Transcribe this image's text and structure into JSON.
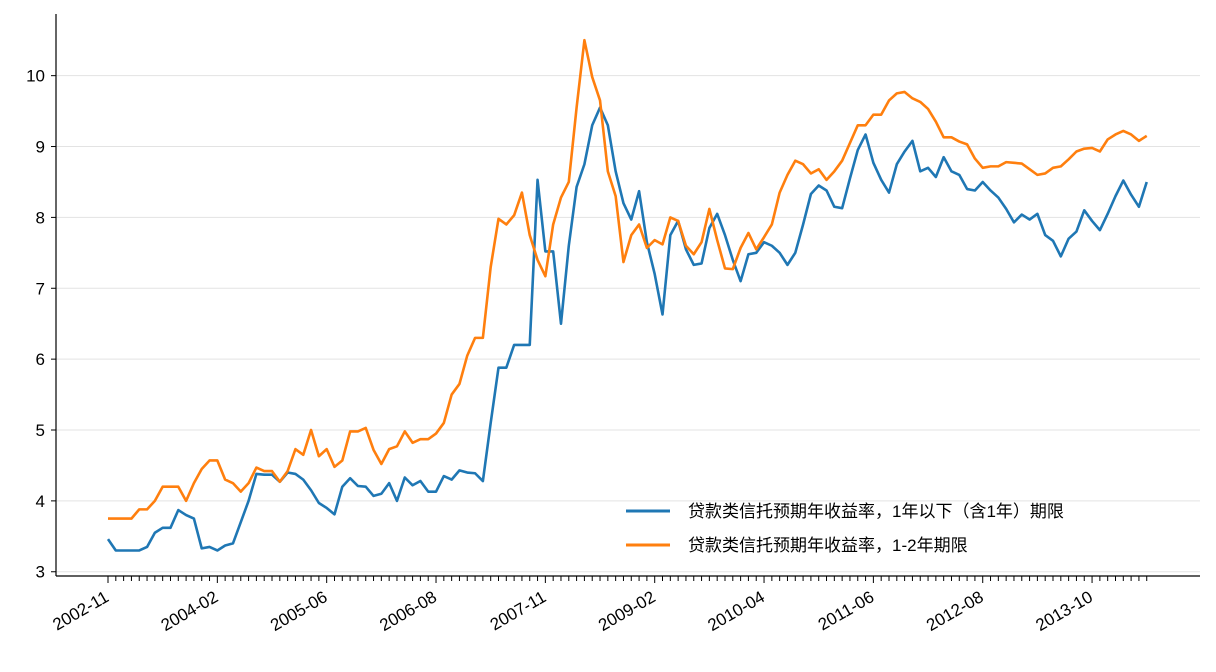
{
  "chart_data": {
    "type": "line",
    "categories": [
      "2002-11",
      null,
      null,
      null,
      null,
      null,
      null,
      null,
      null,
      null,
      null,
      null,
      null,
      null,
      "2004-02",
      null,
      null,
      null,
      null,
      null,
      null,
      null,
      null,
      null,
      null,
      null,
      null,
      null,
      "2005-06",
      null,
      null,
      null,
      null,
      null,
      null,
      null,
      null,
      null,
      null,
      null,
      null,
      null,
      "2006-08",
      null,
      null,
      null,
      null,
      null,
      null,
      null,
      null,
      null,
      null,
      null,
      null,
      null,
      "2007-11",
      null,
      null,
      null,
      null,
      null,
      null,
      null,
      null,
      null,
      null,
      null,
      null,
      null,
      "2009-02",
      null,
      null,
      null,
      null,
      null,
      null,
      null,
      null,
      null,
      null,
      null,
      null,
      null,
      "2010-04",
      null,
      null,
      null,
      null,
      null,
      null,
      null,
      null,
      null,
      null,
      null,
      null,
      null,
      "2011-06",
      null,
      null,
      null,
      null,
      null,
      null,
      null,
      null,
      null,
      null,
      null,
      null,
      null,
      "2012-08",
      null,
      null,
      null,
      null,
      null,
      null,
      null,
      null,
      null,
      null,
      null,
      null,
      null,
      "2013-10",
      null,
      null,
      null,
      null,
      null,
      null,
      null
    ],
    "series": [
      {
        "name": "贷款类信托预期年收益率，1年以下（含1年）期限",
        "color": "#1f77b4",
        "values": [
          3.46,
          3.3,
          3.3,
          3.3,
          3.3,
          3.35,
          3.55,
          3.62,
          3.62,
          3.87,
          3.8,
          3.75,
          3.33,
          3.35,
          3.3,
          3.37,
          3.4,
          3.7,
          4.0,
          4.38,
          4.37,
          4.37,
          4.27,
          4.4,
          4.38,
          4.3,
          4.15,
          3.97,
          3.9,
          3.81,
          4.2,
          4.32,
          4.21,
          4.2,
          4.07,
          4.1,
          4.25,
          4.0,
          4.33,
          4.22,
          4.28,
          4.13,
          4.13,
          4.35,
          4.3,
          4.43,
          4.4,
          4.39,
          4.28,
          5.1,
          5.88,
          5.88,
          6.2,
          6.2,
          6.2,
          8.53,
          7.52,
          7.52,
          6.5,
          7.6,
          8.43,
          8.75,
          9.3,
          9.55,
          9.3,
          8.65,
          8.2,
          7.97,
          8.37,
          7.65,
          7.2,
          6.63,
          7.75,
          7.95,
          7.55,
          7.33,
          7.35,
          7.85,
          8.05,
          7.75,
          7.4,
          7.1,
          7.48,
          7.5,
          7.65,
          7.6,
          7.5,
          7.33,
          7.5,
          7.9,
          8.33,
          8.45,
          8.38,
          8.15,
          8.13,
          8.55,
          8.95,
          9.17,
          8.77,
          8.53,
          8.35,
          8.75,
          8.93,
          9.08,
          8.65,
          8.7,
          8.57,
          8.85,
          8.65,
          8.6,
          8.4,
          8.38,
          8.5,
          8.38,
          8.28,
          8.12,
          7.93,
          8.04,
          7.97,
          8.05,
          7.75,
          7.67,
          7.45,
          7.7,
          7.8,
          8.1,
          7.95,
          7.82,
          8.05,
          8.3,
          8.52,
          8.32,
          8.15,
          8.5
        ]
      },
      {
        "name": "贷款类信托预期年收益率，1-2年期限",
        "color": "#ff7f0e",
        "values": [
          3.75,
          3.75,
          3.75,
          3.75,
          3.88,
          3.88,
          4.0,
          4.2,
          4.2,
          4.2,
          4.0,
          4.25,
          4.45,
          4.57,
          4.57,
          4.3,
          4.25,
          4.13,
          4.25,
          4.47,
          4.42,
          4.42,
          4.27,
          4.42,
          4.73,
          4.65,
          5.0,
          4.63,
          4.73,
          4.48,
          4.57,
          4.98,
          4.98,
          5.03,
          4.72,
          4.52,
          4.73,
          4.77,
          4.98,
          4.82,
          4.87,
          4.87,
          4.95,
          5.1,
          5.5,
          5.65,
          6.05,
          6.3,
          6.3,
          7.3,
          7.98,
          7.9,
          8.03,
          8.35,
          7.75,
          7.4,
          7.17,
          7.9,
          8.28,
          8.5,
          9.55,
          10.5,
          9.98,
          9.65,
          8.65,
          8.3,
          7.37,
          7.75,
          7.9,
          7.57,
          7.68,
          7.62,
          8.0,
          7.95,
          7.6,
          7.48,
          7.65,
          8.12,
          7.68,
          7.28,
          7.27,
          7.57,
          7.78,
          7.55,
          7.72,
          7.9,
          8.35,
          8.6,
          8.8,
          8.75,
          8.62,
          8.68,
          8.53,
          8.65,
          8.8,
          9.05,
          9.3,
          9.3,
          9.45,
          9.45,
          9.65,
          9.75,
          9.77,
          9.68,
          9.63,
          9.53,
          9.35,
          9.13,
          9.13,
          9.07,
          9.03,
          8.83,
          8.7,
          8.72,
          8.72,
          8.78,
          8.77,
          8.76,
          8.68,
          8.6,
          8.62,
          8.7,
          8.72,
          8.82,
          8.93,
          8.97,
          8.98,
          8.93,
          9.1,
          9.17,
          9.22,
          9.17,
          9.08,
          9.15
        ]
      }
    ],
    "ylim": [
      2.94,
      10.87
    ],
    "yticks": [
      3,
      4,
      5,
      6,
      7,
      8,
      9,
      10
    ],
    "grid": true,
    "legend": "lower right"
  }
}
